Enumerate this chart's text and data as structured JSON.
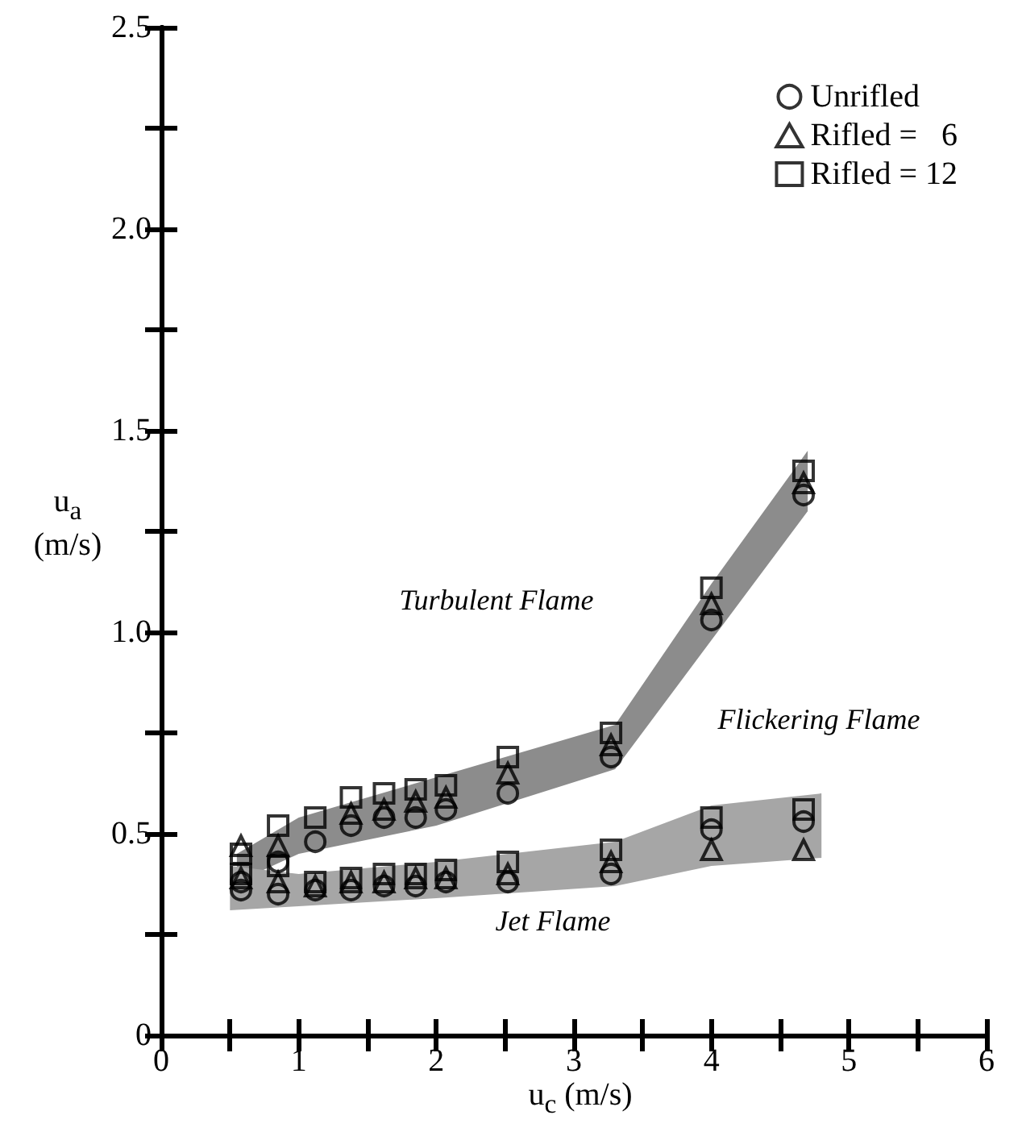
{
  "chart_data": {
    "type": "scatter",
    "xlabel": "u$_{c}$ (m/s)",
    "ylabel": "u$_{a}$ (m/s)",
    "xlim": [
      0,
      6
    ],
    "ylim": [
      0,
      2.5
    ],
    "xticks": [
      0,
      {
        "value": 0.5,
        "label": null
      },
      1,
      {
        "value": 1.5,
        "label": null
      },
      2,
      {
        "value": 2.5,
        "label": null
      },
      3,
      {
        "value": 3.5,
        "label": null
      },
      4,
      {
        "value": 4.5,
        "label": null
      },
      5,
      {
        "value": 5.5,
        "label": null
      },
      6
    ],
    "yticks": [
      0,
      {
        "value": 0.25,
        "label": null
      },
      {
        "value": 0.5,
        "label": "0.5"
      },
      {
        "value": 0.75,
        "label": null
      },
      {
        "value": 1,
        "label": "1.0"
      },
      {
        "value": 1.25,
        "label": null
      },
      {
        "value": 1.5,
        "label": "1.5"
      },
      {
        "value": 1.75,
        "label": null
      },
      {
        "value": 2,
        "label": "2.0"
      },
      {
        "value": 2.25,
        "label": null
      },
      2.5
    ],
    "grid": false,
    "legend": "top right",
    "annotations": [
      "Turbulent Flame",
      "Flickering Flame",
      "Jet Flame"
    ],
    "series": [
      {
        "type": "area",
        "color": "#8c8c8c",
        "values": [
          null,
          null,
          null,
          null,
          null,
          null
        ],
        "x": [
          0.55,
          1.0,
          2.0,
          3.3,
          4.0,
          4.7
        ],
        "lower": [
          0.38,
          0.45,
          0.52,
          0.66,
          0.98,
          1.3
        ],
        "upper": [
          0.45,
          0.54,
          0.64,
          0.77,
          1.12,
          1.45
        ]
      },
      {
        "type": "area",
        "color": "#a6a6a6",
        "values": [
          null,
          null,
          null,
          null,
          null,
          null
        ],
        "x": [
          0.5,
          1.0,
          2.0,
          3.3,
          4.0,
          4.8
        ],
        "lower": [
          0.31,
          0.32,
          0.34,
          0.37,
          0.42,
          0.44
        ],
        "upper": [
          0.42,
          0.4,
          0.43,
          0.48,
          0.57,
          0.6
        ]
      },
      {
        "name": "Unrifled",
        "marker": "circle",
        "color": "#000000",
        "x": [
          0.58,
          0.85,
          1.12,
          1.38,
          1.62,
          1.85,
          2.07,
          2.52,
          3.27,
          4.0,
          4.67,
          0.58,
          0.85,
          1.12,
          1.38,
          1.62,
          1.85,
          2.07,
          2.52,
          3.27,
          4.0,
          4.67
        ],
        "values": [
          0.38,
          0.43,
          0.48,
          0.52,
          0.54,
          0.54,
          0.56,
          0.6,
          0.69,
          1.03,
          1.34,
          0.36,
          0.35,
          0.36,
          0.36,
          0.37,
          0.37,
          0.38,
          0.38,
          0.4,
          0.51,
          0.53
        ]
      },
      {
        "name": "Rifled =   6",
        "marker": "triangle",
        "color": "#000000",
        "x": [
          0.58,
          0.85,
          1.38,
          1.62,
          1.85,
          2.07,
          2.52,
          3.27,
          4.0,
          4.67,
          0.58,
          0.85,
          1.12,
          1.38,
          1.62,
          1.85,
          2.07,
          2.52,
          3.27,
          4.0,
          4.67
        ],
        "values": [
          0.47,
          0.47,
          0.55,
          0.56,
          0.58,
          0.59,
          0.65,
          0.72,
          1.07,
          1.37,
          0.39,
          0.38,
          0.37,
          0.38,
          0.38,
          0.39,
          0.39,
          0.4,
          0.43,
          0.46,
          0.46
        ]
      },
      {
        "name": "Rifled = 12",
        "marker": "square",
        "color": "#000000",
        "x": [
          0.58,
          0.85,
          1.12,
          1.38,
          1.62,
          1.85,
          2.07,
          2.52,
          3.27,
          4.0,
          4.67,
          0.58,
          0.85,
          1.12,
          1.38,
          1.62,
          1.85,
          2.07,
          2.52,
          3.27,
          4.0,
          4.67
        ],
        "values": [
          0.45,
          0.52,
          0.54,
          0.59,
          0.6,
          0.61,
          0.62,
          0.69,
          0.75,
          1.11,
          1.4,
          0.4,
          0.42,
          0.38,
          0.39,
          0.4,
          0.4,
          0.41,
          0.43,
          0.46,
          0.54,
          0.56
        ]
      }
    ]
  }
}
